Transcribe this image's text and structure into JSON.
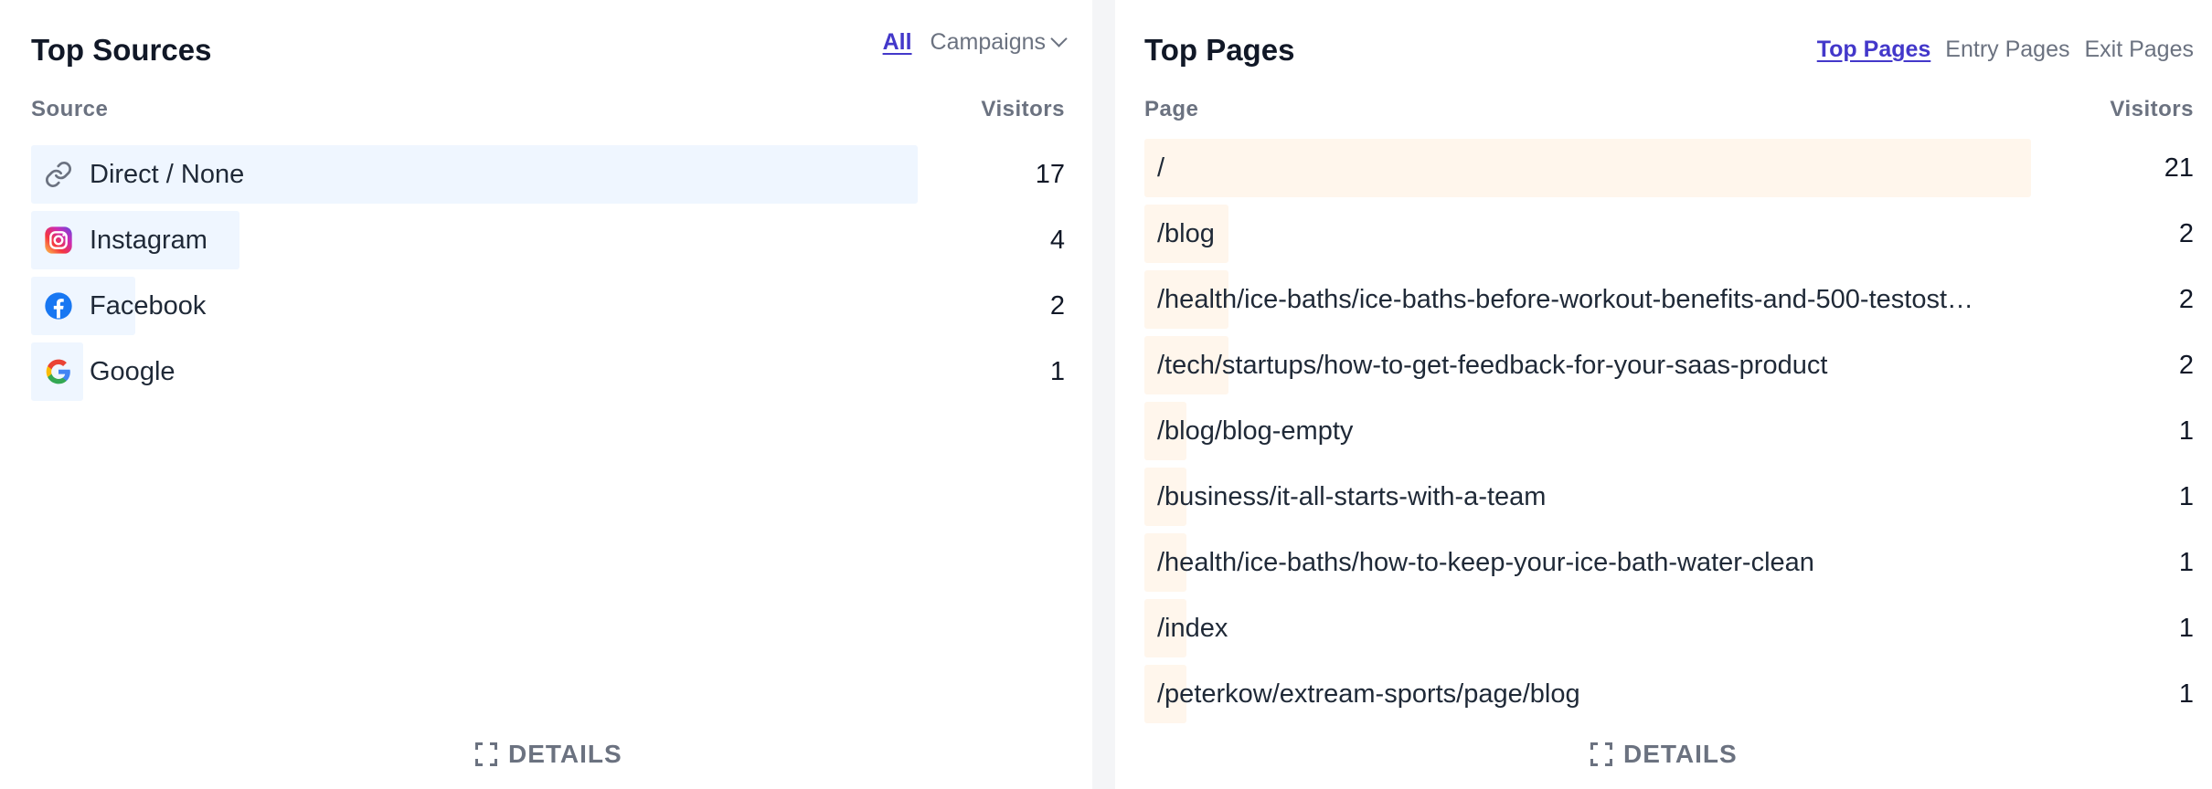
{
  "sources": {
    "title": "Top Sources",
    "tabs": {
      "all": "All",
      "campaigns": "Campaigns"
    },
    "headers": {
      "source": "Source",
      "visitors": "Visitors"
    },
    "max_visitors": 17,
    "rows": [
      {
        "label": "Direct / None",
        "value": "17",
        "visitors": 17,
        "icon": "link-icon"
      },
      {
        "label": "Instagram",
        "value": "4",
        "visitors": 4,
        "icon": "instagram-icon"
      },
      {
        "label": "Facebook",
        "value": "2",
        "visitors": 2,
        "icon": "facebook-icon"
      },
      {
        "label": "Google",
        "value": "1",
        "visitors": 1,
        "icon": "google-icon"
      }
    ],
    "details_label": "DETAILS"
  },
  "pages": {
    "title": "Top Pages",
    "tabs": {
      "top": "Top Pages",
      "entry": "Entry Pages",
      "exit": "Exit Pages"
    },
    "headers": {
      "page": "Page",
      "visitors": "Visitors"
    },
    "max_visitors": 21,
    "rows": [
      {
        "label": "/",
        "value": "21",
        "visitors": 21
      },
      {
        "label": "/blog",
        "value": "2",
        "visitors": 2
      },
      {
        "label": "/health/ice-baths/ice-baths-before-workout-benefits-and-500-testost…",
        "value": "2",
        "visitors": 2
      },
      {
        "label": "/tech/startups/how-to-get-feedback-for-your-saas-product",
        "value": "2",
        "visitors": 2
      },
      {
        "label": "/blog/blog-empty",
        "value": "1",
        "visitors": 1
      },
      {
        "label": "/business/it-all-starts-with-a-team",
        "value": "1",
        "visitors": 1
      },
      {
        "label": "/health/ice-baths/how-to-keep-your-ice-bath-water-clean",
        "value": "1",
        "visitors": 1
      },
      {
        "label": "/index",
        "value": "1",
        "visitors": 1
      },
      {
        "label": "/peterkow/extream-sports/page/blog",
        "value": "1",
        "visitors": 1
      }
    ],
    "details_label": "DETAILS"
  },
  "colors": {
    "accent": "#4338ca",
    "source_bar": "#eff6ff",
    "page_bar": "#fff6ec",
    "muted_text": "#6b7280"
  }
}
